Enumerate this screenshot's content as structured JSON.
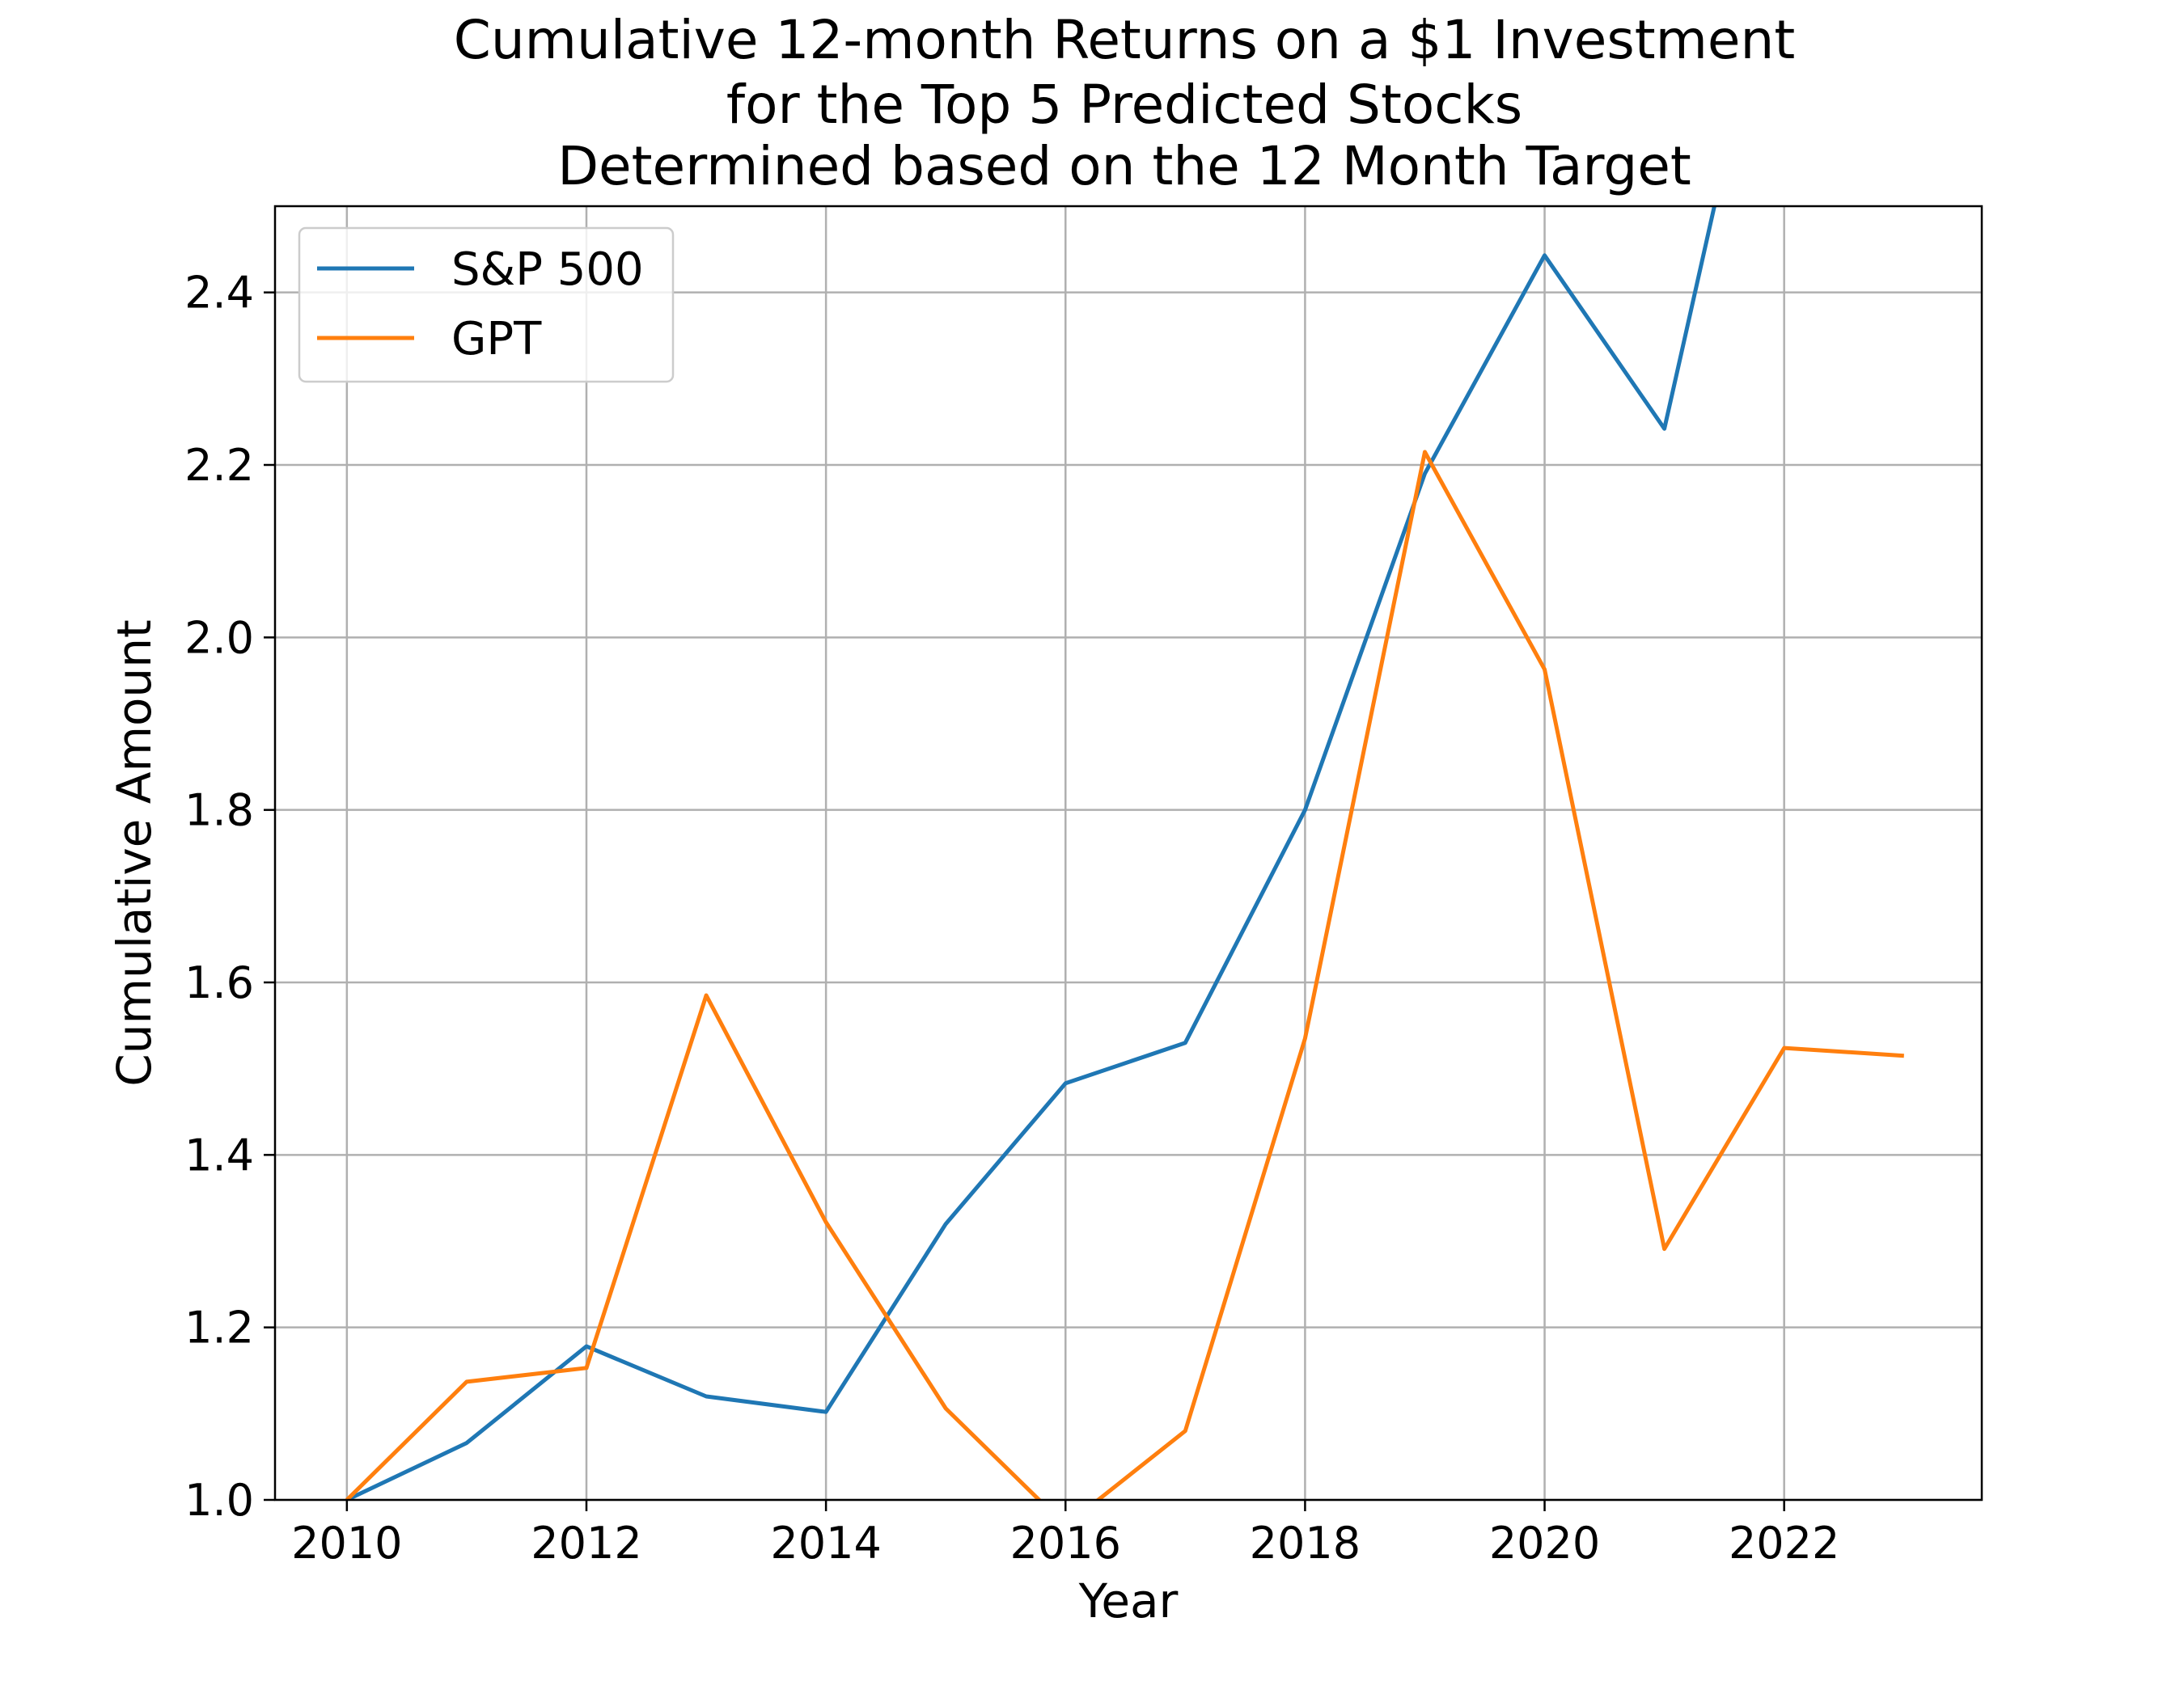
{
  "chart_data": {
    "type": "line",
    "title": [
      "Cumulative 12-month Returns on a $1 Investment",
      "for the Top 5 Predicted Stocks",
      "Determined based on the 12 Month Target"
    ],
    "xlabel": "Year",
    "ylabel": "Cumulative Amount",
    "xlim": [
      2009.4,
      2023.65
    ],
    "ylim": [
      1.0,
      2.5
    ],
    "x_ticks": [
      2010,
      2012,
      2014,
      2016,
      2018,
      2020,
      2022
    ],
    "y_ticks": [
      1.0,
      1.2,
      1.4,
      1.6,
      1.8,
      2.0,
      2.2,
      2.4
    ],
    "y_tick_labels": [
      "1.0",
      "1.2",
      "1.4",
      "1.6",
      "1.8",
      "2.0",
      "2.2",
      "2.4"
    ],
    "grid": true,
    "legend_position": "upper-left",
    "series": [
      {
        "name": "S&P 500",
        "color": "#1f77b4",
        "x": [
          2010,
          2011,
          2012,
          2013,
          2014,
          2015,
          2016,
          2017,
          2018,
          2019,
          2020,
          2021,
          2022
        ],
        "y": [
          1.0,
          1.066,
          1.178,
          1.12,
          1.102,
          1.32,
          1.483,
          1.53,
          1.8,
          2.19,
          2.443,
          2.242,
          2.86
        ]
      },
      {
        "name": "GPT",
        "color": "#ff7f0e",
        "x": [
          2010,
          2011,
          2012,
          2013,
          2014,
          2015,
          2016,
          2017,
          2018,
          2019,
          2020,
          2021,
          2022,
          2023
        ],
        "y": [
          1.0,
          1.137,
          1.153,
          1.585,
          1.322,
          1.106,
          0.97,
          1.08,
          1.535,
          2.215,
          1.963,
          1.291,
          1.524,
          1.515
        ]
      }
    ]
  }
}
